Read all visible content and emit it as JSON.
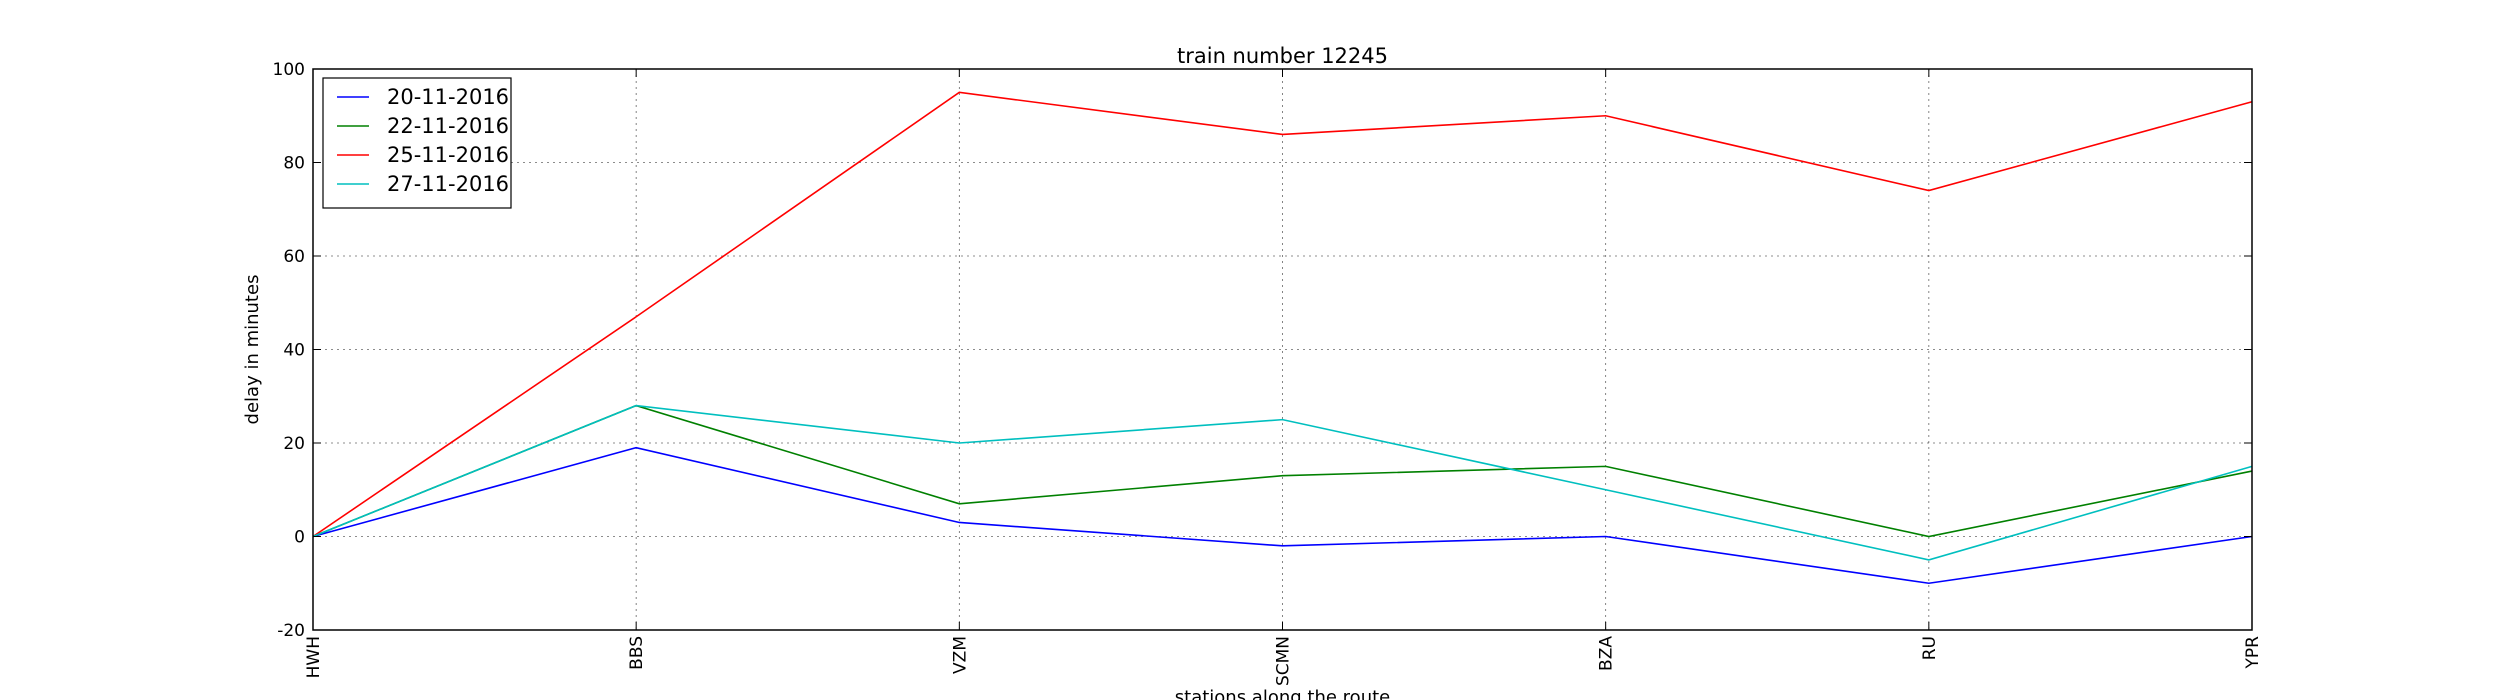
{
  "chart_data": {
    "type": "line",
    "title": "train number 12245",
    "xlabel": "stations along the route",
    "ylabel": "delay in minutes",
    "categories": [
      "HWH",
      "BBS",
      "VZM",
      "SCMN",
      "BZA",
      "RU",
      "YPR"
    ],
    "ylim": [
      -20,
      100
    ],
    "yticks": [
      -20,
      0,
      20,
      40,
      60,
      80,
      100
    ],
    "grid": true,
    "legend_position": "top-left",
    "series": [
      {
        "name": "20-11-2016",
        "color": "#0000ff",
        "values": [
          0,
          19,
          3,
          -2,
          0,
          -10,
          0
        ]
      },
      {
        "name": "22-11-2016",
        "color": "#008000",
        "values": [
          0,
          28,
          7,
          13,
          15,
          0,
          14
        ]
      },
      {
        "name": "25-11-2016",
        "color": "#ff0000",
        "values": [
          0,
          47,
          95,
          86,
          90,
          74,
          93
        ]
      },
      {
        "name": "27-11-2016",
        "color": "#00bfbf",
        "values": [
          0,
          28,
          20,
          25,
          10,
          -5,
          15
        ]
      }
    ]
  }
}
